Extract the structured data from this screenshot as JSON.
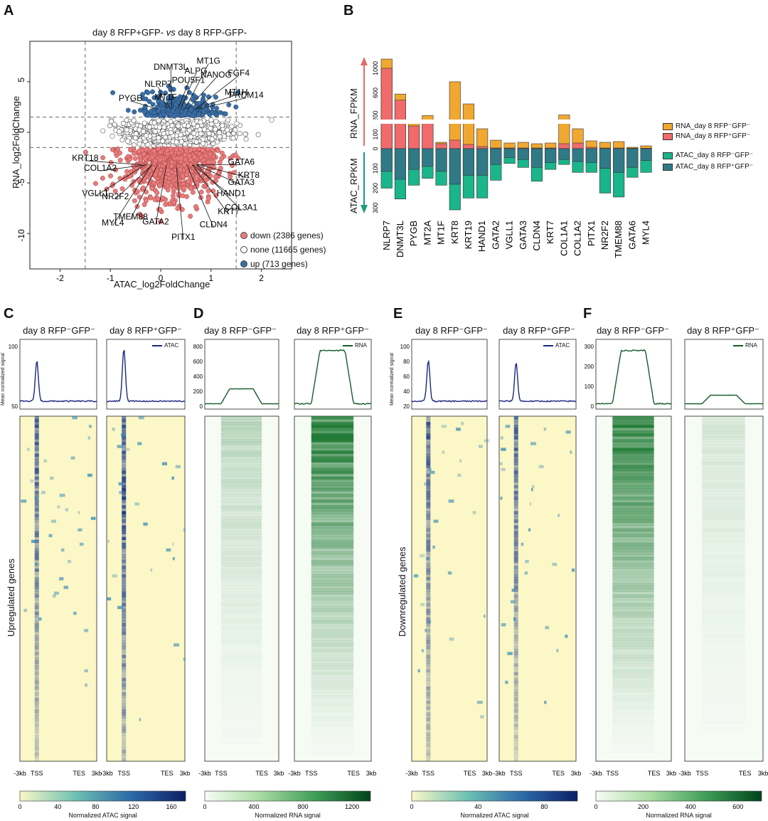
{
  "panels": {
    "A": "A",
    "B": "B",
    "C": "C",
    "D": "D",
    "E": "E",
    "F": "F"
  },
  "panelA": {
    "title_left": "day 8 RFP+GFP-",
    "title_vs": "vs",
    "title_right": "day 8 RFP-GFP-",
    "xlabel": "ATAC_log2FoldChange",
    "ylabel": "RNA_log2FoldChange",
    "legend": [
      {
        "label": "down (2386 genes)",
        "color": "#e87b7b"
      },
      {
        "label": "none (11665 genes)",
        "color": "#ffffff"
      },
      {
        "label": "up (713 genes)",
        "color": "#3a6ea5"
      }
    ]
  },
  "panelB": {
    "axis_top_label": "RNA_FPKM",
    "axis_bottom_label": "ATAC_RPKM",
    "legend": [
      {
        "label": "RNA_day 8 RFP⁻GFP⁻",
        "color": "#f0a830"
      },
      {
        "label": "RNA_day 8 RFP⁺GFP⁻",
        "color": "#f06b6b"
      },
      {
        "label": "ATAC_day 8 RFP⁻GFP⁻",
        "color": "#1ab58a"
      },
      {
        "label": "ATAC_day 8 RFP⁺GFP⁻",
        "color": "#2f7a86"
      }
    ]
  },
  "panelsCF": {
    "col_titles": {
      "neg": "day 8 RFP⁻GFP⁻",
      "pos": "day 8 RFP⁺GFP⁻"
    },
    "profile_ylabel": "Mean normalized signal",
    "legend_atac": "ATAC",
    "legend_rna": "RNA",
    "axis_ticks": {
      "m3": "-3kb",
      "tss": "TSS",
      "tes": "TES",
      "p3": "3kb"
    },
    "side_label_up": "Upregulated genes",
    "side_label_down": "Downregulated genes",
    "C": {
      "cbar_title": "Normalized ATAC signal",
      "cbar_ticks": [
        "0",
        "40",
        "80",
        "120",
        "160"
      ],
      "yticks": [
        "100",
        "50"
      ]
    },
    "D": {
      "cbar_title": "Normalized RNA signal",
      "cbar_ticks": [
        "0",
        "400",
        "800",
        "1200"
      ],
      "yticks": [
        "800",
        "600",
        "400",
        "200",
        "0"
      ]
    },
    "E": {
      "cbar_title": "Normalized ATAC signal",
      "cbar_ticks": [
        "0",
        "40",
        "80"
      ],
      "yticks": [
        "100",
        "80",
        "60",
        "40",
        "20"
      ]
    },
    "F": {
      "cbar_title": "Normalized RNA signal",
      "cbar_ticks": [
        "0",
        "200",
        "400",
        "600"
      ],
      "yticks": [
        "300",
        "200",
        "100",
        "0"
      ]
    }
  },
  "chart_data": [
    {
      "type": "scatter",
      "title": "day 8 RFP+GFP- vs day 8 RFP-GFP-",
      "xlabel": "ATAC_log2FoldChange",
      "ylabel": "RNA_log2FoldChange",
      "xlim": [
        -2.6,
        2.6
      ],
      "ylim": [
        -13.5,
        9
      ],
      "xticks": [
        -2,
        -1,
        0,
        1,
        2
      ],
      "yticks": [
        5,
        0,
        -5,
        -10
      ],
      "thresholds": {
        "x": [
          -1.5,
          1.5
        ],
        "y": [
          -1.5,
          1.5
        ]
      },
      "series": [
        {
          "name": "down (2386 genes)",
          "color": "#e87b7b",
          "count": 2386
        },
        {
          "name": "none (11665 genes)",
          "color": "#ffffff",
          "count": 11665
        },
        {
          "name": "up (713 genes)",
          "color": "#3a6ea5",
          "count": 713
        }
      ],
      "annotations": [
        {
          "label": "DNMT3L",
          "x": 0.2,
          "y": 6.2
        },
        {
          "label": "MT1G",
          "x": 0.95,
          "y": 6.8
        },
        {
          "label": "NLRP7",
          "x": -0.05,
          "y": 4.5
        },
        {
          "label": "POU5F1",
          "x": 0.55,
          "y": 4.9
        },
        {
          "label": "ALPG",
          "x": 0.7,
          "y": 5.8
        },
        {
          "label": "NANOG",
          "x": 1.1,
          "y": 5.4
        },
        {
          "label": "FGF4",
          "x": 1.55,
          "y": 5.6
        },
        {
          "label": "PYGB",
          "x": -0.6,
          "y": 3.1
        },
        {
          "label": "MT1F",
          "x": 0.1,
          "y": 3.2
        },
        {
          "label": "MT1H",
          "x": 1.5,
          "y": 3.7
        },
        {
          "label": "PRDM14",
          "x": 1.7,
          "y": 3.4
        },
        {
          "label": "KRT18",
          "x": -1.5,
          "y": -2.8
        },
        {
          "label": "COL1A2",
          "x": -1.2,
          "y": -3.8
        },
        {
          "label": "GATA6",
          "x": 1.6,
          "y": -3.2
        },
        {
          "label": "KRT8",
          "x": 1.75,
          "y": -4.5
        },
        {
          "label": "GATA3",
          "x": 1.6,
          "y": -5.2
        },
        {
          "label": "HAND1",
          "x": 1.4,
          "y": -6.3
        },
        {
          "label": "VGLL1",
          "x": -1.3,
          "y": -6.3
        },
        {
          "label": "NR2F2",
          "x": -0.9,
          "y": -6.6
        },
        {
          "label": "TMEM88",
          "x": -0.6,
          "y": -8.6
        },
        {
          "label": "MYL4",
          "x": -0.95,
          "y": -9.2
        },
        {
          "label": "GATA2",
          "x": -0.1,
          "y": -9.1
        },
        {
          "label": "KRT7",
          "x": 1.35,
          "y": -8.1
        },
        {
          "label": "COL3A1",
          "x": 1.6,
          "y": -7.7
        },
        {
          "label": "CLDN4",
          "x": 1.05,
          "y": -9.4
        },
        {
          "label": "PITX1",
          "x": 0.45,
          "y": -10.6
        }
      ]
    },
    {
      "type": "bar",
      "categories": [
        "NLRP7",
        "DNMT3L",
        "PYGB",
        "MT2A",
        "MT1F",
        "KRT8",
        "KRT19",
        "HAND1",
        "GATA2",
        "VGLL1",
        "GATA3",
        "CLDN4",
        "KRT7",
        "COL1A1",
        "COL1A2",
        "PITX1",
        "NR2F2",
        "TMEM88",
        "GATA6",
        "MYL4"
      ],
      "series": [
        {
          "name": "RNA_day 8 RFP⁻GFP⁻",
          "values": [
            1150,
            580,
            200,
            230,
            45,
            780,
            420,
            140,
            60,
            40,
            45,
            35,
            40,
            240,
            140,
            55,
            45,
            50,
            10,
            20
          ]
        },
        {
          "name": "RNA_day 8 RFP⁺GFP⁻",
          "values": [
            1000,
            480,
            160,
            200,
            35,
            60,
            30,
            15,
            5,
            5,
            5,
            5,
            5,
            35,
            40,
            10,
            5,
            5,
            3,
            3
          ]
        },
        {
          "name": "ATAC_day 8 RFP⁻GFP⁻",
          "values": [
            200,
            255,
            185,
            150,
            185,
            310,
            250,
            250,
            160,
            75,
            95,
            165,
            105,
            80,
            120,
            120,
            225,
            245,
            145,
            120
          ]
        },
        {
          "name": "ATAC_day 8 RFP⁺GFP⁻",
          "values": [
            115,
            155,
            105,
            90,
            115,
            180,
            135,
            135,
            80,
            45,
            55,
            95,
            70,
            55,
            65,
            70,
            100,
            120,
            95,
            60
          ]
        }
      ],
      "ylabel_top": "RNA_FPKM",
      "ylabel_bottom": "ATAC_RPKM",
      "yticks_top": [
        0,
        100,
        200,
        600,
        1000
      ],
      "yticks_bottom": [
        0,
        100,
        200,
        300
      ]
    }
  ]
}
